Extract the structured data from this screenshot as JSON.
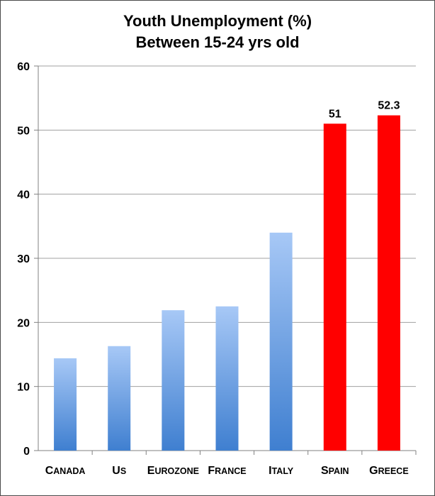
{
  "chart_data": {
    "type": "bar",
    "title_line1": "Youth Unemployment (%)",
    "title_line2": "Between 15-24 yrs old",
    "xlabel": "",
    "ylabel": "",
    "ylim": [
      0,
      60
    ],
    "yticks": [
      "0",
      "10",
      "20",
      "30",
      "40",
      "50",
      "60"
    ],
    "grid": true,
    "categories": [
      "Canada",
      "US",
      "Eurozone",
      "France",
      "Italy",
      "Spain",
      "Greece"
    ],
    "values": [
      14.4,
      16.3,
      21.9,
      22.5,
      34.0,
      51,
      52.3
    ],
    "highlight": [
      false,
      false,
      false,
      false,
      false,
      true,
      true
    ],
    "data_labels": [
      "",
      "",
      "",
      "",
      "",
      "51",
      "52.3"
    ],
    "colors": {
      "bar_top": "#a7c8f6",
      "bar_bottom": "#3f7fd0",
      "highlight": "#ff0000",
      "grid": "#a0a0a0",
      "axis": "#808080"
    }
  }
}
